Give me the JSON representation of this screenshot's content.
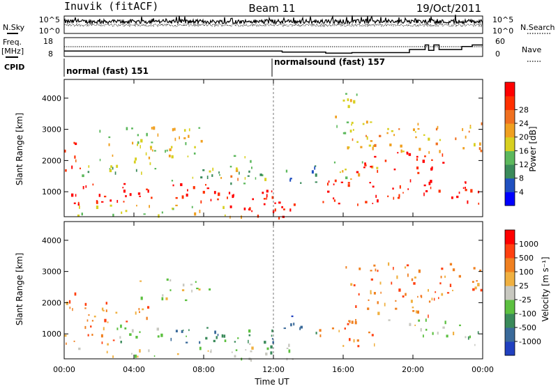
{
  "header": {
    "station": "Inuvik (fitACF)",
    "beam": "Beam 11",
    "date": "19/Oct/2011"
  },
  "noise_panel": {
    "left_label": "N.Sky",
    "right_label": "N.Search",
    "yticks_left": [
      "10^5",
      "10^0"
    ],
    "yticks_right": [
      "10^5",
      "10^0"
    ]
  },
  "freq_panel": {
    "left_label_1": "Freq.",
    "left_label_2": "[MHz]",
    "right_label": "Nave",
    "yticks_left": [
      "18",
      "8"
    ],
    "yticks_right": [
      "60",
      "0"
    ],
    "freq_steps": [
      {
        "t0": 0.0,
        "t1": 12.5,
        "mhz": 11.5
      },
      {
        "t0": 12.5,
        "t1": 15.0,
        "mhz": 10.8
      },
      {
        "t0": 15.0,
        "t1": 16.5,
        "mhz": 10.2
      },
      {
        "t0": 16.5,
        "t1": 19.8,
        "mhz": 10.5
      },
      {
        "t0": 19.8,
        "t1": 20.7,
        "mhz": 12.5
      },
      {
        "t0": 20.7,
        "t1": 20.9,
        "mhz": 15.5
      },
      {
        "t0": 20.9,
        "t1": 21.2,
        "mhz": 12.0
      },
      {
        "t0": 21.2,
        "t1": 21.5,
        "mhz": 15.5
      },
      {
        "t0": 21.5,
        "t1": 22.8,
        "mhz": 12.5
      },
      {
        "t0": 22.8,
        "t1": 23.4,
        "mhz": 14.5
      },
      {
        "t0": 23.4,
        "t1": 24.0,
        "mhz": 15.5
      }
    ]
  },
  "cpid_panel": {
    "label": "CPID",
    "programs": [
      {
        "name": "normal (fast) 151",
        "start": 0
      },
      {
        "name": "normalsound (fast) 157",
        "start": 12
      }
    ]
  },
  "chart_data": [
    {
      "type": "heatmap",
      "title": "",
      "xlabel": "",
      "ylabel": "Slant Range [km]",
      "xlim": [
        0,
        24
      ],
      "ylim": [
        200,
        4600
      ],
      "yticks": [
        1000,
        2000,
        3000,
        4000
      ],
      "colorbar": {
        "label": "Power [dB]",
        "ticks": [
          "4",
          "8",
          "12",
          "16",
          "20",
          "24",
          "28"
        ],
        "colors": [
          "#0000ff",
          "#2050c0",
          "#3a8a5a",
          "#5cb85c",
          "#d8d020",
          "#f0a020",
          "#f07020",
          "#ff3000",
          "#ff0000"
        ]
      },
      "regions": [
        {
          "t": [
            0.0,
            1.2
          ],
          "r": [
            1700,
            2600
          ],
          "level": 7
        },
        {
          "t": [
            0.0,
            3.0
          ],
          "r": [
            600,
            1400
          ],
          "level": 8
        },
        {
          "t": [
            1.0,
            5.0
          ],
          "r": [
            1400,
            2100
          ],
          "level": 3
        },
        {
          "t": [
            3.0,
            9.0
          ],
          "r": [
            700,
            1300
          ],
          "level": 8
        },
        {
          "t": [
            5.0,
            9.0
          ],
          "r": [
            1300,
            1800
          ],
          "level": 3
        },
        {
          "t": [
            2.0,
            8.0
          ],
          "r": [
            2100,
            3100
          ],
          "level": 4
        },
        {
          "t": [
            8.0,
            10.0
          ],
          "r": [
            1400,
            1800
          ],
          "level": 6
        },
        {
          "t": [
            9.0,
            12.0
          ],
          "r": [
            400,
            1200
          ],
          "level": 8
        },
        {
          "t": [
            9.5,
            11.5
          ],
          "r": [
            1200,
            2200
          ],
          "level": 3
        },
        {
          "t": [
            10.5,
            13.5
          ],
          "r": [
            200,
            700
          ],
          "level": 8
        },
        {
          "t": [
            12.5,
            14.5
          ],
          "r": [
            1300,
            1900
          ],
          "level": 2
        },
        {
          "t": [
            14.5,
            18.0
          ],
          "r": [
            600,
            1400
          ],
          "level": 8
        },
        {
          "t": [
            15.0,
            18.0
          ],
          "r": [
            1400,
            2000
          ],
          "level": 4
        },
        {
          "t": [
            16.5,
            22.0
          ],
          "r": [
            1600,
            2300
          ],
          "level": 8
        },
        {
          "t": [
            18.0,
            23.0
          ],
          "r": [
            800,
            1400
          ],
          "level": 8
        },
        {
          "t": [
            22.5,
            24.0
          ],
          "r": [
            600,
            1200
          ],
          "level": 8
        },
        {
          "t": [
            16.0,
            24.0
          ],
          "r": [
            2300,
            3300
          ],
          "level": 5
        },
        {
          "t": [
            15.5,
            17.0
          ],
          "r": [
            2900,
            4200
          ],
          "level": 4
        },
        {
          "t": [
            0.5,
            11.0
          ],
          "r": [
            200,
            600
          ],
          "level": 4
        }
      ]
    },
    {
      "type": "heatmap",
      "title": "",
      "xlabel": "Time UT",
      "ylabel": "Slant Range [km]",
      "xlim": [
        0,
        24
      ],
      "ylim": [
        200,
        4600
      ],
      "yticks": [
        1000,
        2000,
        3000,
        4000
      ],
      "xticks": [
        "00:00",
        "04:00",
        "08:00",
        "12:00",
        "16:00",
        "20:00",
        "00:00"
      ],
      "colorbar": {
        "label": "Velocity [m s⁻¹]",
        "ticks": [
          "1000",
          "500",
          "100",
          "25",
          "-25",
          "-100",
          "-500",
          "-1000"
        ],
        "colors": [
          "#2040c0",
          "#3a6a9a",
          "#3a8a5a",
          "#5cc040",
          "#c8c8c0",
          "#f0b040",
          "#f08020",
          "#ff4010",
          "#ff0000"
        ]
      },
      "regions": [
        {
          "t": [
            0.0,
            1.2
          ],
          "r": [
            1700,
            2600
          ],
          "level": 6
        },
        {
          "t": [
            0.0,
            3.0
          ],
          "r": [
            600,
            1400
          ],
          "level": 6
        },
        {
          "t": [
            1.0,
            5.0
          ],
          "r": [
            1400,
            2100
          ],
          "level": 6
        },
        {
          "t": [
            3.0,
            6.0
          ],
          "r": [
            700,
            1300
          ],
          "level": 3
        },
        {
          "t": [
            6.0,
            9.0
          ],
          "r": [
            700,
            1300
          ],
          "level": 2
        },
        {
          "t": [
            4.0,
            8.5
          ],
          "r": [
            2100,
            2800
          ],
          "level": 4
        },
        {
          "t": [
            9.0,
            12.0
          ],
          "r": [
            400,
            1200
          ],
          "level": 2
        },
        {
          "t": [
            10.5,
            13.5
          ],
          "r": [
            200,
            700
          ],
          "level": 4
        },
        {
          "t": [
            12.5,
            14.5
          ],
          "r": [
            1000,
            1600
          ],
          "level": 1
        },
        {
          "t": [
            14.5,
            18.0
          ],
          "r": [
            600,
            1400
          ],
          "level": 6
        },
        {
          "t": [
            16.0,
            18.0
          ],
          "r": [
            1400,
            2000
          ],
          "level": 6
        },
        {
          "t": [
            17.0,
            22.0
          ],
          "r": [
            1600,
            2300
          ],
          "level": 6
        },
        {
          "t": [
            18.0,
            23.0
          ],
          "r": [
            900,
            1500
          ],
          "level": 4
        },
        {
          "t": [
            22.5,
            24.0
          ],
          "r": [
            600,
            1100
          ],
          "level": 3
        },
        {
          "t": [
            16.0,
            24.0
          ],
          "r": [
            2300,
            3300
          ],
          "level": 6
        },
        {
          "t": [
            0.5,
            11.0
          ],
          "r": [
            200,
            600
          ],
          "level": 4
        }
      ]
    }
  ]
}
